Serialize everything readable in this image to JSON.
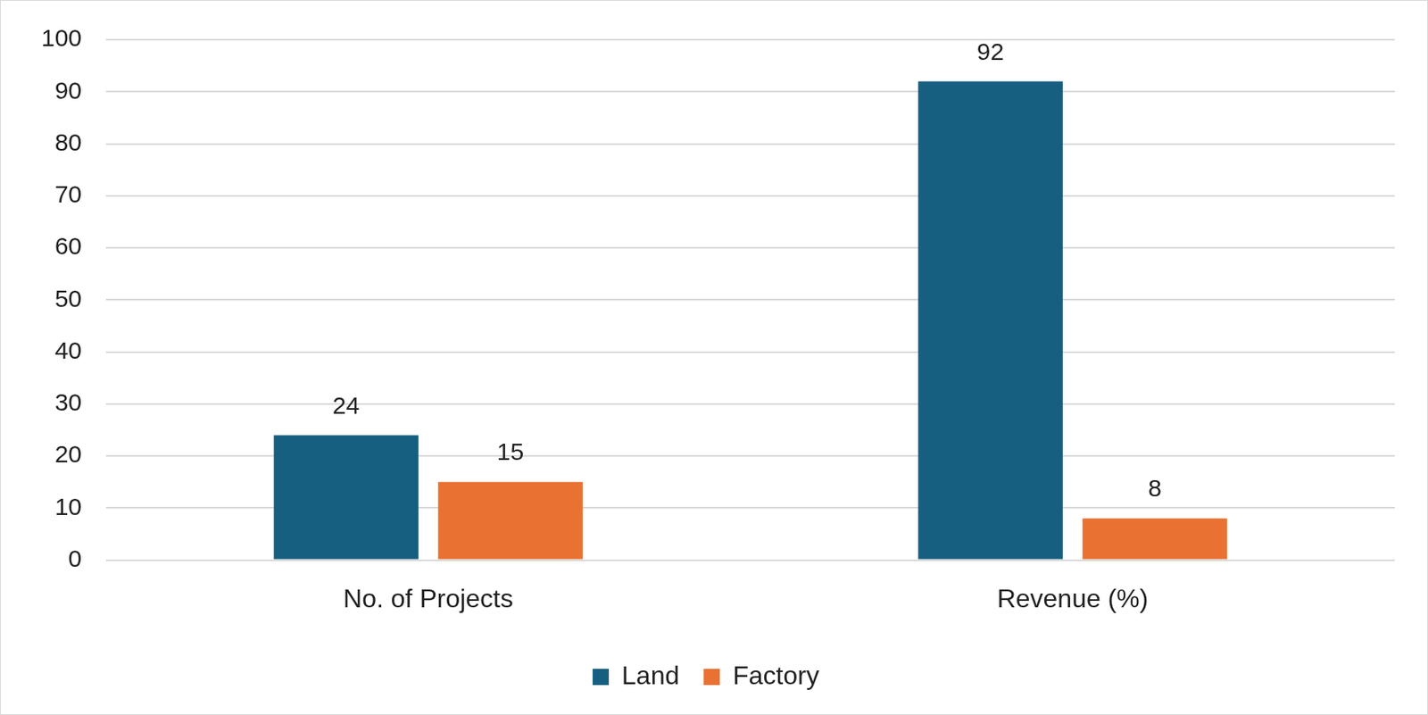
{
  "chart_data": {
    "type": "bar",
    "categories": [
      "No. of Projects",
      "Revenue (%)"
    ],
    "series": [
      {
        "name": "Land",
        "color": "#175f80",
        "values": [
          24,
          92
        ]
      },
      {
        "name": "Factory",
        "color": "#e97132",
        "values": [
          15,
          8
        ]
      }
    ],
    "ylim": [
      0,
      100
    ],
    "yticks": [
      0,
      10,
      20,
      30,
      40,
      50,
      60,
      70,
      80,
      90,
      100
    ],
    "grid": true,
    "legend": "bottom",
    "data_labels": true
  }
}
